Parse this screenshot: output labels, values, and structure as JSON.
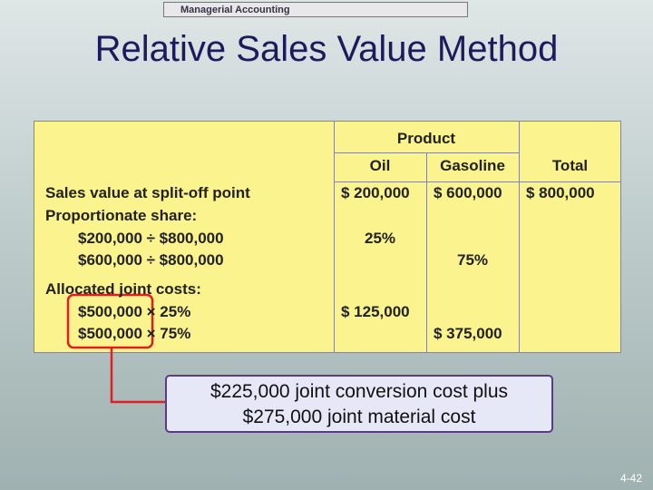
{
  "header": {
    "banner": "Managerial Accounting"
  },
  "title": "Relative Sales Value Method",
  "table": {
    "product_header": "Product",
    "columns": [
      "Oil",
      "Gasoline",
      "Total"
    ],
    "sales_row": {
      "label": "Sales value at split-off point",
      "values": [
        "$ 200,000",
        "$ 600,000",
        "$ 800,000"
      ]
    },
    "sections": [
      {
        "heading": "Proportionate share:",
        "rows": [
          {
            "label": "$200,000 ÷ $800,000",
            "values": [
              "25%",
              null,
              null
            ]
          },
          {
            "label": "$600,000 ÷ $800,000",
            "values": [
              null,
              "75%",
              null
            ]
          }
        ]
      },
      {
        "heading": "Allocated joint costs:",
        "rows": [
          {
            "label": "$500,000 × 25%",
            "values": [
              "$ 125,000",
              null,
              null
            ]
          },
          {
            "label": "$500,000 × 75%",
            "values": [
              null,
              "$ 375,000",
              null
            ]
          }
        ]
      }
    ]
  },
  "callout": [
    "$225,000 joint conversion cost plus",
    "$275,000 joint material cost"
  ],
  "page_number": "4-42"
}
